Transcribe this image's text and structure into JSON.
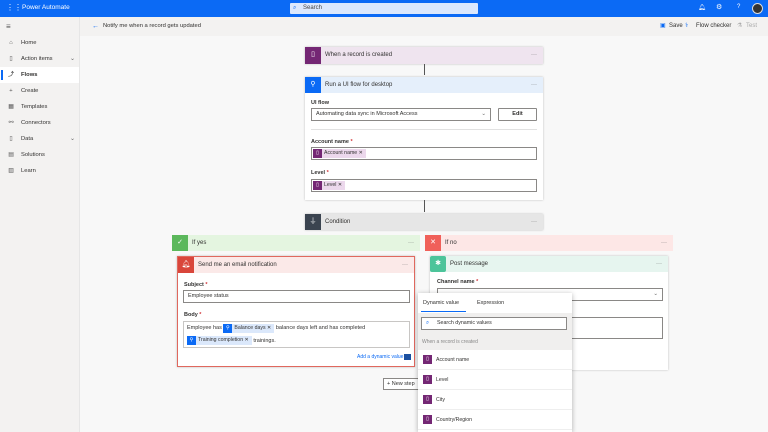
{
  "app": {
    "title": "Power Automate",
    "search_placeholder": "Search"
  },
  "nav": {
    "items": [
      {
        "label": "Home",
        "icon": "home-icon"
      },
      {
        "label": "Action items",
        "icon": "clipboard-icon"
      },
      {
        "label": "Flows",
        "icon": "flow-icon",
        "active": true
      },
      {
        "label": "Create",
        "icon": "plus-icon"
      },
      {
        "label": "Templates",
        "icon": "templates-icon"
      },
      {
        "label": "Connectors",
        "icon": "connector-icon"
      },
      {
        "label": "Data",
        "icon": "database-icon"
      },
      {
        "label": "Solutions",
        "icon": "solutions-icon"
      },
      {
        "label": "Learn",
        "icon": "book-icon"
      }
    ]
  },
  "toolbar": {
    "flow_title": "Notify me when a record gets updated",
    "save": "Save",
    "flow_checker": "Flow checker",
    "test": "Test"
  },
  "trigger": {
    "title": "When a record is created",
    "color": "#742774"
  },
  "uiflow": {
    "title": "Run a UI flow for desktop",
    "ui_flow_label": "UI flow",
    "ui_flow_value": "Automating data sync in Microsoft Access",
    "edit": "Edit",
    "account_label": "Account name",
    "account_token": "Account name",
    "level_label": "Level",
    "level_token": "Level"
  },
  "condition": {
    "title": "Condition"
  },
  "if_yes": {
    "title": "If yes",
    "email": {
      "title": "Send me an email notification",
      "subject_label": "Subject",
      "subject_value": "Employee status",
      "body_label": "Body",
      "body_text1": "Employee has",
      "token1": "Balance days",
      "body_text2": "balance days left and has completed",
      "token2": "Training completion",
      "body_text3": "trainings.",
      "add_dynamic": "Add a dynamic value"
    }
  },
  "if_no": {
    "title": "If no",
    "post": {
      "title": "Post message",
      "channel_label": "Channel name"
    }
  },
  "new_step": "+ New step",
  "dynamic_popup": {
    "tabs": [
      "Dynamic value",
      "Expression"
    ],
    "search_placeholder": "Search dynamic values",
    "section": "When a record is created",
    "items": [
      "Account name",
      "Level",
      "City",
      "Country/Region"
    ]
  }
}
